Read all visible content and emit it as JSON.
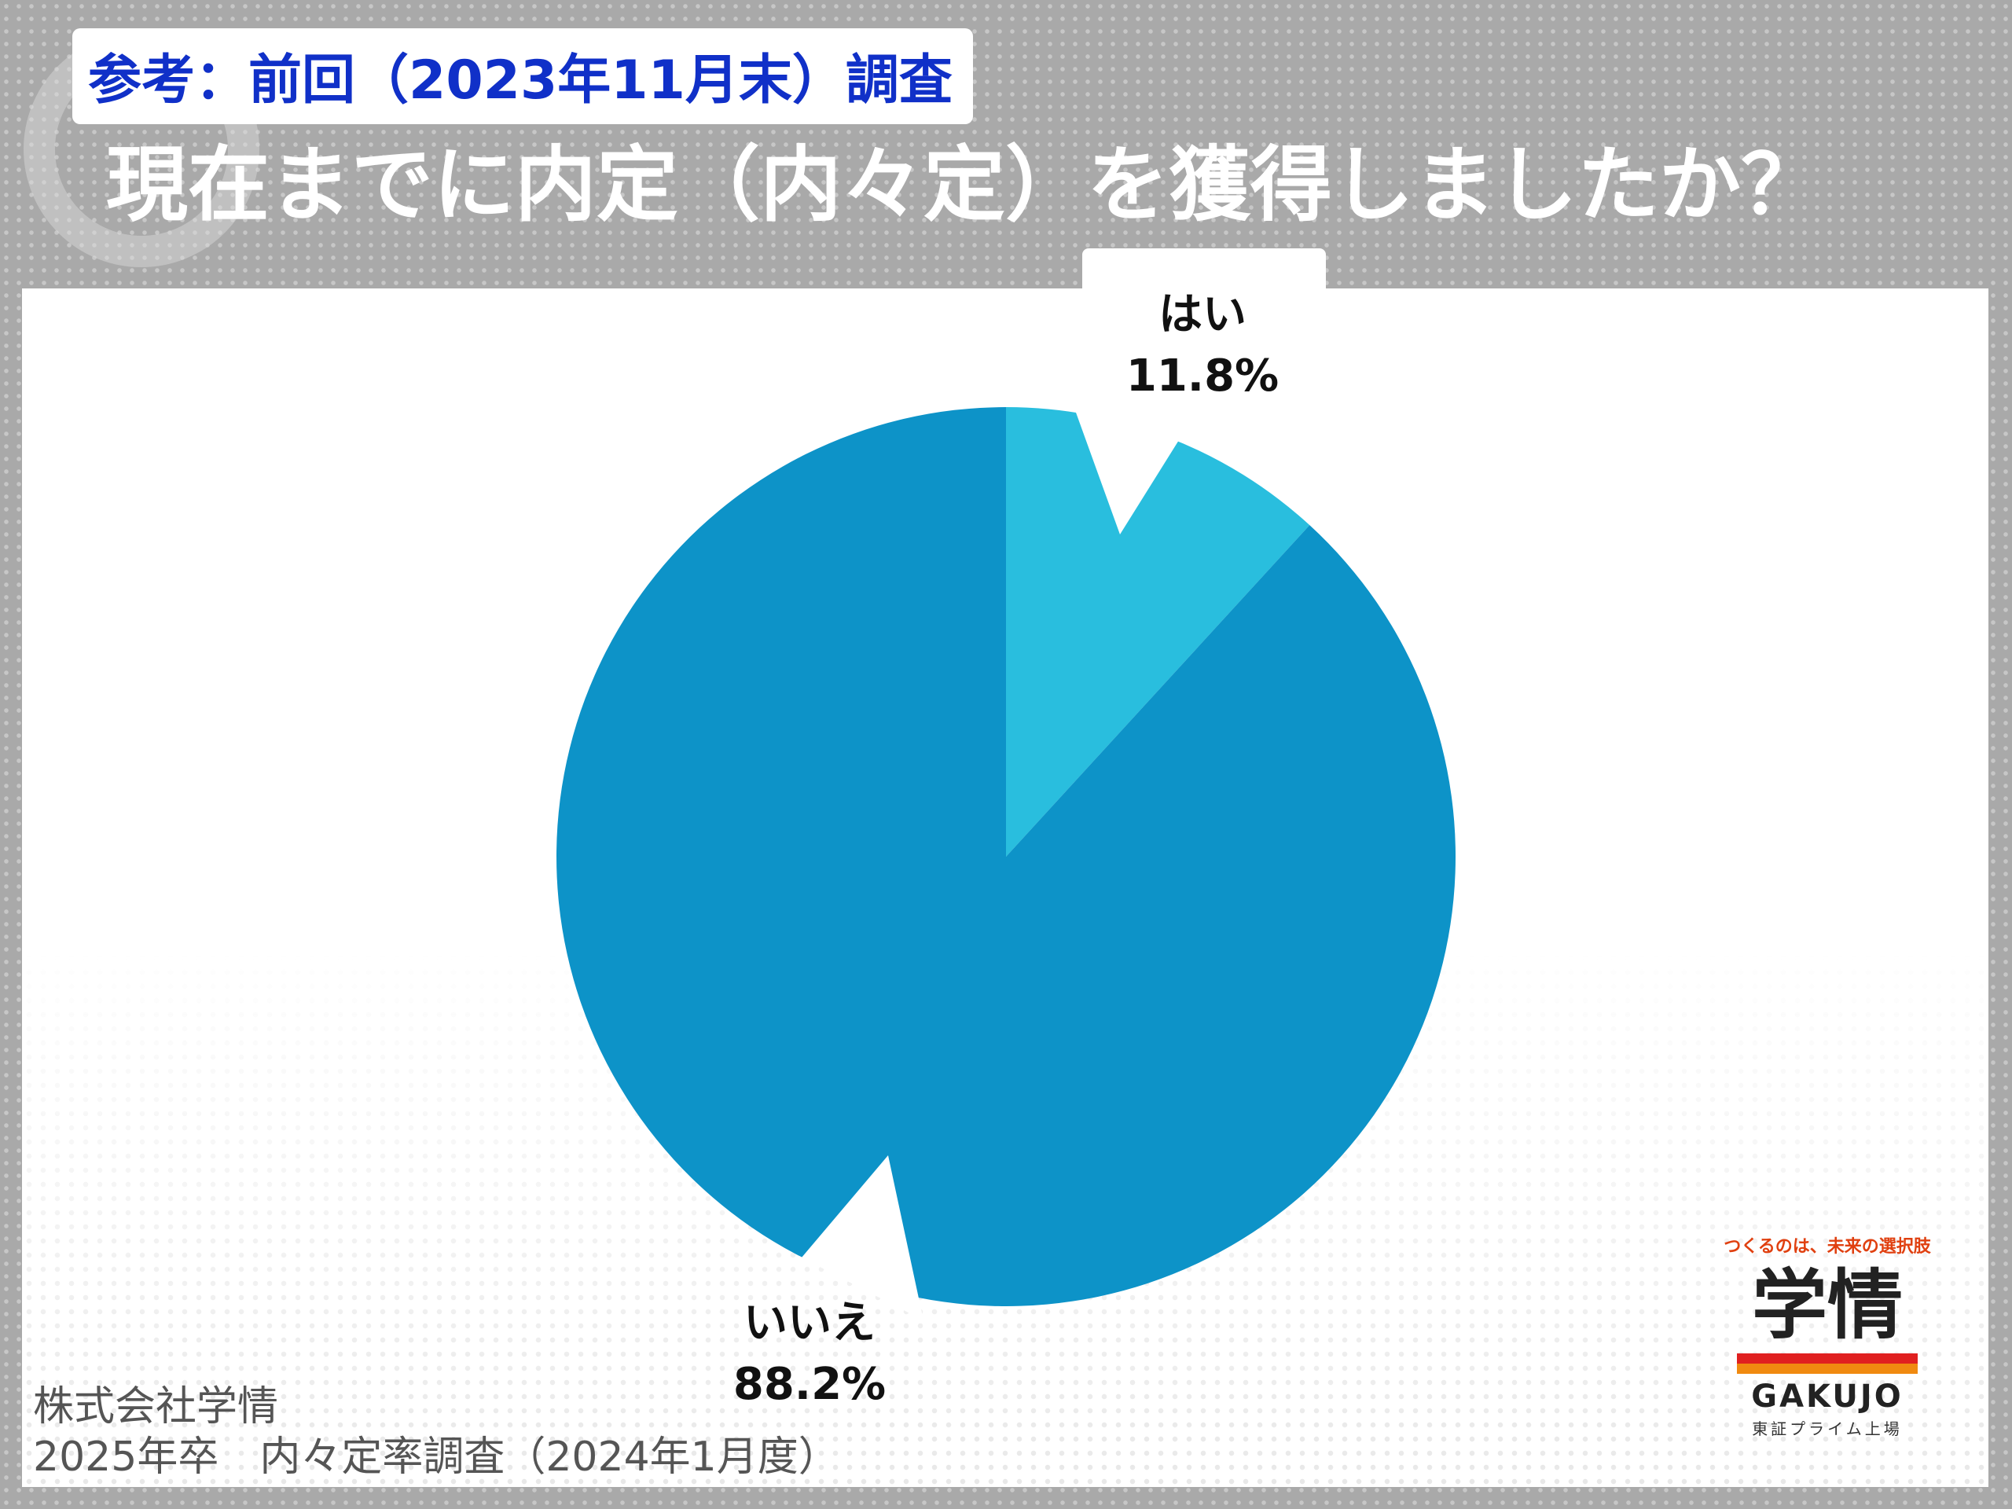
{
  "header": {
    "reference": "参考：前回（2023年11月末）調査",
    "title": "現在までに内定（内々定）を獲得しましたか？"
  },
  "chart_data": {
    "type": "pie",
    "title": "現在までに内定（内々定）を獲得しましたか？",
    "slices": [
      {
        "label": "はい",
        "value": 11.8,
        "value_label": "11.8%",
        "color": "#29bede",
        "exploded": true
      },
      {
        "label": "いいえ",
        "value": 88.2,
        "value_label": "88.2%",
        "color": "#0d93c8",
        "exploded": false
      }
    ]
  },
  "source": {
    "line1": "株式会社学情",
    "line2": "2025年卒　内々定率調査（2024年1月度）"
  },
  "logo": {
    "tagline": "つくるのは、未来の選択肢",
    "main": "学情",
    "english": "GAKUJO",
    "sub": "東証プライム上場"
  }
}
